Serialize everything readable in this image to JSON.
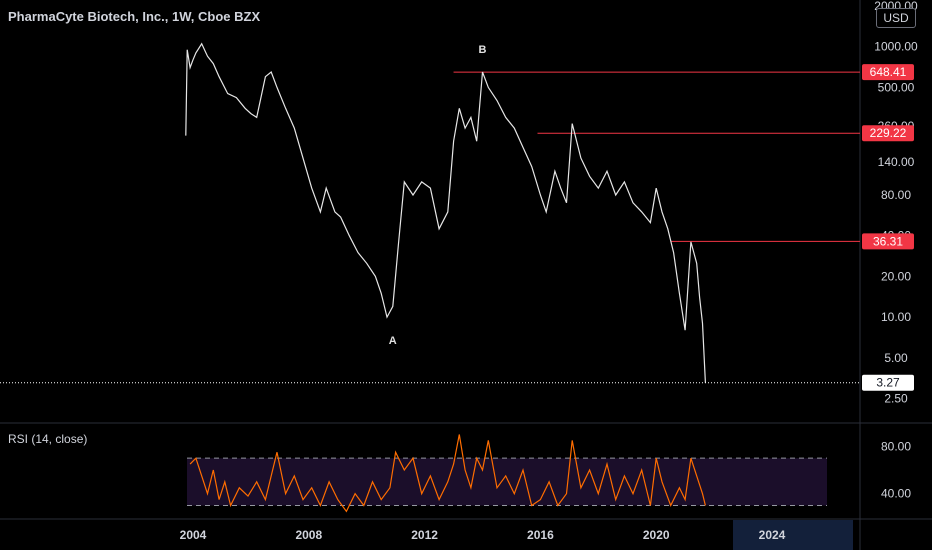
{
  "header": {
    "title": "PharmaCyte Biotech, Inc., 1W, Cboe BZX",
    "currency": "USD"
  },
  "rsi": {
    "title": "RSI (14, close)",
    "upper_band": 70,
    "lower_band": 30,
    "ticks": [
      "80.00",
      "40.00"
    ]
  },
  "colors": {
    "price_line": "#e6e6e6",
    "level_line": "#f23645",
    "rsi_line": "#ff6d00",
    "rsi_band_fill": "#1b0e2a",
    "band_dash": "#9598a1",
    "last_price_dots": "#ffffff"
  },
  "chart_data": [
    {
      "type": "line",
      "scale": "log",
      "x_label_ticks": [
        "2004",
        "2008",
        "2012",
        "2016",
        "2020",
        "2024"
      ],
      "y_ticks": [
        "2000.00",
        "1000.00",
        "500.00",
        "260.00",
        "140.00",
        "80.00",
        "40.00",
        "20.00",
        "10.00",
        "5.00",
        "2.50"
      ],
      "ylim": [
        2.2,
        2000
      ],
      "xlim": [
        2003.6,
        2026.2
      ],
      "series": [
        {
          "x": [
            2003.75,
            2003.8,
            2003.9,
            2004.0,
            2004.1,
            2004.3,
            2004.5,
            2004.7,
            2004.9,
            2005.2,
            2005.5,
            2005.8,
            2006.0,
            2006.2,
            2006.5,
            2006.7,
            2006.9,
            2007.2,
            2007.5,
            2007.8,
            2008.1,
            2008.4,
            2008.6,
            2008.9,
            2009.1,
            2009.4,
            2009.7,
            2010.0,
            2010.3,
            2010.5,
            2010.7,
            2010.9,
            2011.1,
            2011.3,
            2011.6,
            2011.9,
            2012.2,
            2012.5,
            2012.8,
            2013.0,
            2013.2,
            2013.4,
            2013.6,
            2013.8,
            2014.0,
            2014.2,
            2014.5,
            2014.8,
            2015.1,
            2015.4,
            2015.7,
            2016.0,
            2016.2,
            2016.5,
            2016.7,
            2016.9,
            2017.1,
            2017.4,
            2017.7,
            2018.0,
            2018.3,
            2018.6,
            2018.9,
            2019.2,
            2019.5,
            2019.8,
            2020.0,
            2020.2,
            2020.4,
            2020.6,
            2020.8,
            2021.0,
            2021.2,
            2021.4,
            2021.5,
            2021.6,
            2021.7
          ],
          "values": [
            220,
            950,
            700,
            800,
            900,
            1050,
            850,
            750,
            600,
            450,
            420,
            350,
            320,
            300,
            600,
            650,
            500,
            350,
            250,
            150,
            90,
            60,
            90,
            60,
            55,
            40,
            30,
            25,
            20,
            15,
            10,
            12,
            35,
            100,
            80,
            100,
            90,
            45,
            60,
            200,
            350,
            250,
            300,
            200,
            650,
            500,
            400,
            300,
            250,
            180,
            130,
            80,
            60,
            120,
            90,
            70,
            270,
            150,
            110,
            90,
            120,
            80,
            100,
            70,
            60,
            50,
            90,
            60,
            45,
            30,
            15,
            8,
            36,
            25,
            14,
            9,
            3.27
          ]
        }
      ],
      "levels": [
        {
          "value": 648.41,
          "label": "648.41",
          "start_x": 2013.0
        },
        {
          "value": 229.22,
          "label": "229.22",
          "start_x": 2015.9
        },
        {
          "value": 36.31,
          "label": "36.31",
          "start_x": 2020.5
        }
      ],
      "last_price": {
        "value": 3.27,
        "label": "3.27"
      },
      "annotations": [
        {
          "text": "B",
          "x": 2014.0,
          "y": 900
        },
        {
          "text": "A",
          "x": 2010.9,
          "y": 6.3
        }
      ]
    },
    {
      "type": "line",
      "title": "RSI (14, close)",
      "ylim": [
        22,
        98
      ],
      "series": [
        {
          "x": [
            2003.9,
            2004.1,
            2004.3,
            2004.5,
            2004.7,
            2004.9,
            2005.1,
            2005.3,
            2005.6,
            2005.9,
            2006.2,
            2006.5,
            2006.7,
            2006.9,
            2007.2,
            2007.5,
            2007.8,
            2008.1,
            2008.4,
            2008.7,
            2009.0,
            2009.3,
            2009.6,
            2009.9,
            2010.2,
            2010.5,
            2010.8,
            2011.0,
            2011.3,
            2011.6,
            2011.9,
            2012.2,
            2012.5,
            2012.8,
            2013.0,
            2013.2,
            2013.4,
            2013.6,
            2013.8,
            2014.0,
            2014.2,
            2014.5,
            2014.8,
            2015.1,
            2015.4,
            2015.7,
            2016.0,
            2016.3,
            2016.6,
            2016.9,
            2017.1,
            2017.4,
            2017.7,
            2018.0,
            2018.3,
            2018.6,
            2018.9,
            2019.2,
            2019.5,
            2019.8,
            2020.0,
            2020.2,
            2020.5,
            2020.8,
            2021.0,
            2021.2,
            2021.4,
            2021.6,
            2021.7
          ],
          "values": [
            65,
            70,
            55,
            40,
            60,
            35,
            50,
            30,
            45,
            38,
            50,
            35,
            55,
            75,
            40,
            55,
            35,
            45,
            30,
            50,
            35,
            25,
            40,
            30,
            50,
            35,
            45,
            75,
            60,
            70,
            40,
            55,
            35,
            50,
            65,
            90,
            60,
            45,
            70,
            60,
            85,
            45,
            55,
            40,
            60,
            30,
            35,
            50,
            30,
            40,
            85,
            45,
            60,
            40,
            65,
            35,
            55,
            40,
            60,
            30,
            70,
            50,
            30,
            45,
            35,
            70,
            55,
            40,
            30
          ]
        }
      ]
    }
  ]
}
